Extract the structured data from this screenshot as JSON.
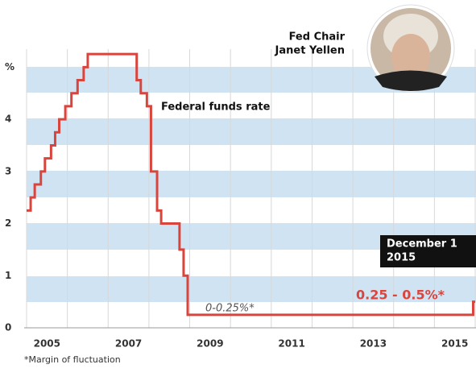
{
  "chart_data": {
    "type": "step",
    "color": "#d9453d",
    "x": [
      2005.0,
      2005.1,
      2005.2,
      2005.35,
      2005.45,
      2005.6,
      2005.7,
      2005.8,
      2005.95,
      2006.1,
      2006.25,
      2006.4,
      2006.5,
      2007.7,
      2007.8,
      2007.95,
      2008.05,
      2008.2,
      2008.3,
      2008.75,
      2008.85,
      2008.95,
      2015.95
    ],
    "values": [
      2.25,
      2.5,
      2.75,
      3.0,
      3.25,
      3.5,
      3.75,
      4.0,
      4.25,
      4.5,
      4.75,
      5.0,
      5.25,
      4.75,
      4.5,
      4.25,
      3.0,
      2.25,
      2.0,
      1.5,
      1.0,
      0.25,
      0.5
    ],
    "xlim": [
      2005,
      2016
    ],
    "ylim": [
      0,
      5.5
    ],
    "xticks": [
      {
        "value": 2005.5,
        "label": "2005"
      },
      {
        "value": 2007.5,
        "label": "2007"
      },
      {
        "value": 2009.5,
        "label": "2009"
      },
      {
        "value": 2011.5,
        "label": "2011"
      },
      {
        "value": 2013.5,
        "label": "2013"
      },
      {
        "value": 2015.5,
        "label": "2015"
      }
    ],
    "yticks": [
      0,
      1,
      2,
      3,
      4,
      {
        "value": 5,
        "label": "%"
      }
    ],
    "series_label": "Federal funds rate",
    "annotations": {
      "low_range": "0-0.25%*",
      "new_range": "0.25 - 0.5%*",
      "date_line1": "December 1",
      "date_line2": "2015"
    },
    "person": {
      "role": "Fed Chair",
      "name": "Janet Yellen"
    },
    "footnote": "*Margin of fluctuation"
  }
}
